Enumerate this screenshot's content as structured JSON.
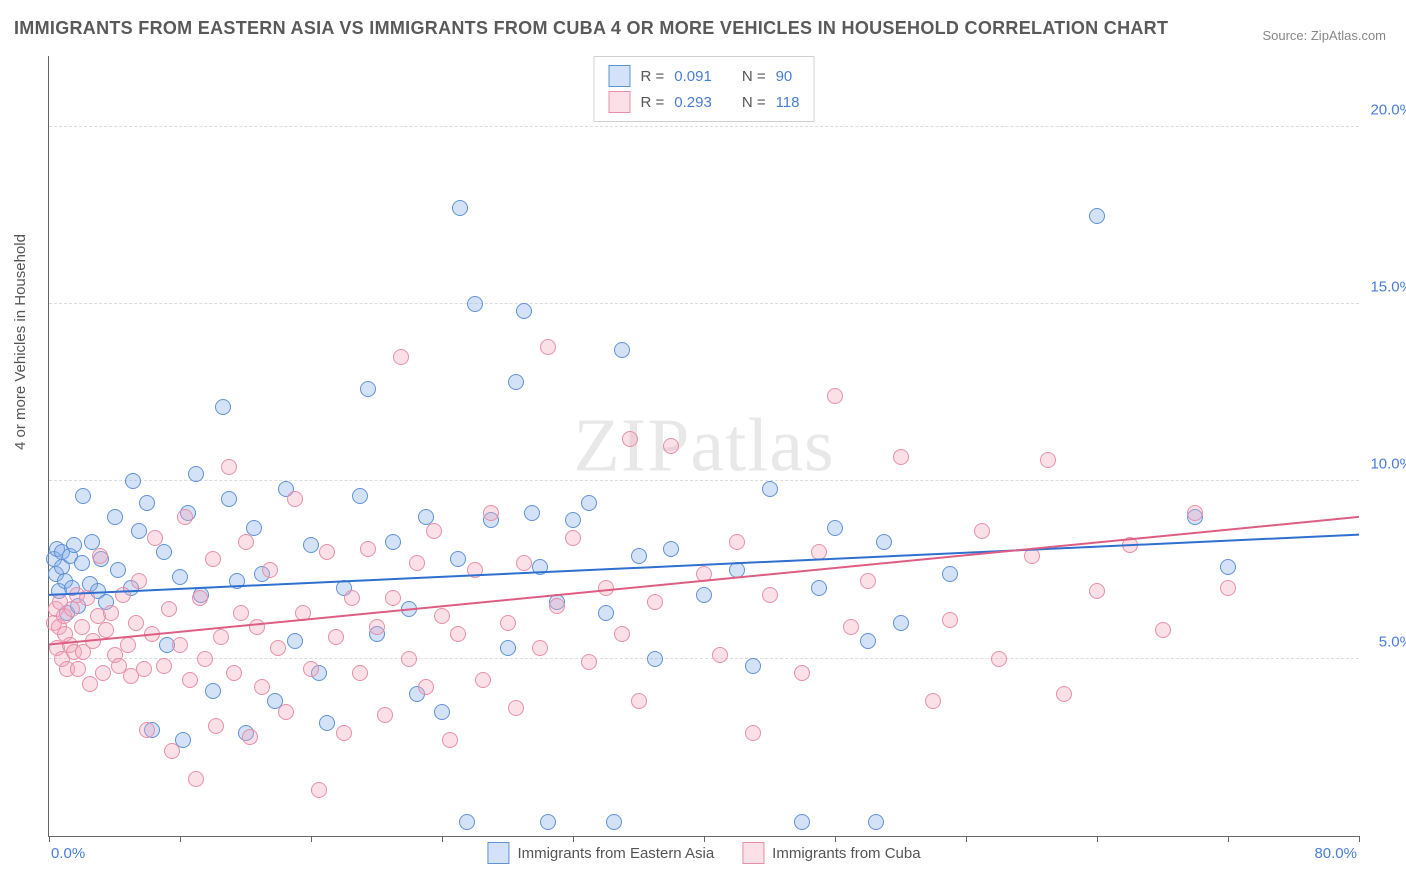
{
  "title": "IMMIGRANTS FROM EASTERN ASIA VS IMMIGRANTS FROM CUBA 4 OR MORE VEHICLES IN HOUSEHOLD CORRELATION CHART",
  "source": "Source: ZipAtlas.com",
  "ylabel": "4 or more Vehicles in Household",
  "watermark": "ZIPatlas",
  "chart": {
    "type": "scatter",
    "xlim": [
      0,
      80
    ],
    "ylim": [
      0,
      22
    ],
    "xtick_min_label": "0.0%",
    "xtick_max_label": "80.0%",
    "xtick_positions": [
      0,
      8,
      16,
      24,
      32,
      40,
      48,
      56,
      64,
      72,
      80
    ],
    "yticks": [
      {
        "v": 5,
        "label": "5.0%"
      },
      {
        "v": 10,
        "label": "10.0%"
      },
      {
        "v": 15,
        "label": "15.0%"
      },
      {
        "v": 20,
        "label": "20.0%"
      }
    ],
    "background_color": "#ffffff",
    "grid_color": "#dcdcdc",
    "axis_color": "#666666",
    "tick_label_color": "#4a7dd8",
    "marker_radius": 7,
    "marker_border_width": 1.5,
    "trend_line_width": 2
  },
  "series": [
    {
      "name": "Immigrants from Eastern Asia",
      "fill": "rgba(133,173,233,0.35)",
      "stroke": "#5f93d6",
      "line_color": "#2e6fcf",
      "R": "0.091",
      "N": "90",
      "trend": {
        "y_at_xmin": 6.8,
        "y_at_xmax": 8.5
      },
      "points": [
        [
          0.3,
          7.8
        ],
        [
          0.4,
          7.4
        ],
        [
          0.5,
          8.1
        ],
        [
          0.6,
          6.9
        ],
        [
          0.8,
          7.6
        ],
        [
          0.8,
          8.0
        ],
        [
          1.0,
          7.2
        ],
        [
          1.1,
          6.3
        ],
        [
          1.3,
          7.9
        ],
        [
          1.4,
          7.0
        ],
        [
          1.5,
          8.2
        ],
        [
          1.8,
          6.5
        ],
        [
          2.0,
          7.7
        ],
        [
          2.1,
          9.6
        ],
        [
          2.5,
          7.1
        ],
        [
          2.6,
          8.3
        ],
        [
          3.0,
          6.9
        ],
        [
          3.2,
          7.8
        ],
        [
          3.5,
          6.6
        ],
        [
          4.0,
          9.0
        ],
        [
          4.2,
          7.5
        ],
        [
          5.0,
          7.0
        ],
        [
          5.1,
          10.0
        ],
        [
          5.5,
          8.6
        ],
        [
          6.0,
          9.4
        ],
        [
          6.3,
          3.0
        ],
        [
          7.0,
          8.0
        ],
        [
          7.2,
          5.4
        ],
        [
          8.0,
          7.3
        ],
        [
          8.2,
          2.7
        ],
        [
          8.5,
          9.1
        ],
        [
          9.0,
          10.2
        ],
        [
          9.3,
          6.8
        ],
        [
          10.0,
          4.1
        ],
        [
          10.6,
          12.1
        ],
        [
          11.0,
          9.5
        ],
        [
          11.5,
          7.2
        ],
        [
          12.0,
          2.9
        ],
        [
          12.5,
          8.7
        ],
        [
          13.0,
          7.4
        ],
        [
          13.8,
          3.8
        ],
        [
          14.5,
          9.8
        ],
        [
          15.0,
          5.5
        ],
        [
          16.0,
          8.2
        ],
        [
          16.5,
          4.6
        ],
        [
          17.0,
          3.2
        ],
        [
          18.0,
          7.0
        ],
        [
          19.0,
          9.6
        ],
        [
          19.5,
          12.6
        ],
        [
          20.0,
          5.7
        ],
        [
          21.0,
          8.3
        ],
        [
          22.0,
          6.4
        ],
        [
          22.5,
          4.0
        ],
        [
          23.0,
          9.0
        ],
        [
          24.0,
          3.5
        ],
        [
          25.0,
          7.8
        ],
        [
          25.1,
          17.7
        ],
        [
          25.5,
          0.4
        ],
        [
          26.0,
          15.0
        ],
        [
          27.0,
          8.9
        ],
        [
          28.0,
          5.3
        ],
        [
          28.5,
          12.8
        ],
        [
          29.0,
          14.8
        ],
        [
          29.5,
          9.1
        ],
        [
          30.0,
          7.6
        ],
        [
          30.5,
          0.4
        ],
        [
          31.0,
          6.6
        ],
        [
          32.0,
          8.9
        ],
        [
          33.0,
          9.4
        ],
        [
          34.0,
          6.3
        ],
        [
          34.5,
          0.4
        ],
        [
          35.0,
          13.7
        ],
        [
          36.0,
          7.9
        ],
        [
          37.0,
          5.0
        ],
        [
          38.0,
          8.1
        ],
        [
          40.0,
          6.8
        ],
        [
          42.0,
          7.5
        ],
        [
          43.0,
          4.8
        ],
        [
          44.0,
          9.8
        ],
        [
          46.0,
          0.4
        ],
        [
          47.0,
          7.0
        ],
        [
          48.0,
          8.7
        ],
        [
          50.0,
          5.5
        ],
        [
          50.5,
          0.4
        ],
        [
          51.0,
          8.3
        ],
        [
          52.0,
          6.0
        ],
        [
          55.0,
          7.4
        ],
        [
          64.0,
          17.5
        ],
        [
          70.0,
          9.0
        ],
        [
          72.0,
          7.6
        ]
      ]
    },
    {
      "name": "Immigrants from Cuba",
      "fill": "rgba(244,166,188,0.35)",
      "stroke": "#e78fa8",
      "line_color": "#de5d83",
      "R": "0.293",
      "N": "118",
      "trend": {
        "y_at_xmin": 5.4,
        "y_at_xmax": 9.0
      },
      "points": [
        [
          0.3,
          6.0
        ],
        [
          0.4,
          6.4
        ],
        [
          0.5,
          5.3
        ],
        [
          0.6,
          5.9
        ],
        [
          0.7,
          6.6
        ],
        [
          0.8,
          5.0
        ],
        [
          0.9,
          6.2
        ],
        [
          1.0,
          5.7
        ],
        [
          1.1,
          4.7
        ],
        [
          1.3,
          5.4
        ],
        [
          1.4,
          6.4
        ],
        [
          1.5,
          5.2
        ],
        [
          1.7,
          6.8
        ],
        [
          1.8,
          4.7
        ],
        [
          2.0,
          5.9
        ],
        [
          2.1,
          5.2
        ],
        [
          2.3,
          6.7
        ],
        [
          2.5,
          4.3
        ],
        [
          2.7,
          5.5
        ],
        [
          3.0,
          6.2
        ],
        [
          3.1,
          7.9
        ],
        [
          3.3,
          4.6
        ],
        [
          3.5,
          5.8
        ],
        [
          3.8,
          6.3
        ],
        [
          4.0,
          5.1
        ],
        [
          4.3,
          4.8
        ],
        [
          4.5,
          6.8
        ],
        [
          4.8,
          5.4
        ],
        [
          5.0,
          4.5
        ],
        [
          5.3,
          6.0
        ],
        [
          5.5,
          7.2
        ],
        [
          5.8,
          4.7
        ],
        [
          6.0,
          3.0
        ],
        [
          6.3,
          5.7
        ],
        [
          6.5,
          8.4
        ],
        [
          7.0,
          4.8
        ],
        [
          7.3,
          6.4
        ],
        [
          7.5,
          2.4
        ],
        [
          8.0,
          5.4
        ],
        [
          8.3,
          9.0
        ],
        [
          8.6,
          4.4
        ],
        [
          9.0,
          1.6
        ],
        [
          9.2,
          6.7
        ],
        [
          9.5,
          5.0
        ],
        [
          10.0,
          7.8
        ],
        [
          10.2,
          3.1
        ],
        [
          10.5,
          5.6
        ],
        [
          11.0,
          10.4
        ],
        [
          11.3,
          4.6
        ],
        [
          11.7,
          6.3
        ],
        [
          12.0,
          8.3
        ],
        [
          12.3,
          2.8
        ],
        [
          12.7,
          5.9
        ],
        [
          13.0,
          4.2
        ],
        [
          13.5,
          7.5
        ],
        [
          14.0,
          5.3
        ],
        [
          14.5,
          3.5
        ],
        [
          15.0,
          9.5
        ],
        [
          15.5,
          6.3
        ],
        [
          16.0,
          4.7
        ],
        [
          16.5,
          1.3
        ],
        [
          17.0,
          8.0
        ],
        [
          17.5,
          5.6
        ],
        [
          18.0,
          2.9
        ],
        [
          18.5,
          6.7
        ],
        [
          19.0,
          4.6
        ],
        [
          19.5,
          8.1
        ],
        [
          20.0,
          5.9
        ],
        [
          20.5,
          3.4
        ],
        [
          21.0,
          6.7
        ],
        [
          21.5,
          13.5
        ],
        [
          22.0,
          5.0
        ],
        [
          22.5,
          7.7
        ],
        [
          23.0,
          4.2
        ],
        [
          23.5,
          8.6
        ],
        [
          24.0,
          6.2
        ],
        [
          24.5,
          2.7
        ],
        [
          25.0,
          5.7
        ],
        [
          26.0,
          7.5
        ],
        [
          26.5,
          4.4
        ],
        [
          27.0,
          9.1
        ],
        [
          28.0,
          6.0
        ],
        [
          28.5,
          3.6
        ],
        [
          29.0,
          7.7
        ],
        [
          30.0,
          5.3
        ],
        [
          30.5,
          13.8
        ],
        [
          31.0,
          6.5
        ],
        [
          32.0,
          8.4
        ],
        [
          33.0,
          4.9
        ],
        [
          34.0,
          7.0
        ],
        [
          35.0,
          5.7
        ],
        [
          35.5,
          11.2
        ],
        [
          36.0,
          3.8
        ],
        [
          37.0,
          6.6
        ],
        [
          38.0,
          11.0
        ],
        [
          40.0,
          7.4
        ],
        [
          41.0,
          5.1
        ],
        [
          42.0,
          8.3
        ],
        [
          43.0,
          2.9
        ],
        [
          44.0,
          6.8
        ],
        [
          46.0,
          4.6
        ],
        [
          47.0,
          8.0
        ],
        [
          48.0,
          12.4
        ],
        [
          49.0,
          5.9
        ],
        [
          50.0,
          7.2
        ],
        [
          52.0,
          10.7
        ],
        [
          54.0,
          3.8
        ],
        [
          55.0,
          6.1
        ],
        [
          57.0,
          8.6
        ],
        [
          58.0,
          5.0
        ],
        [
          60.0,
          7.9
        ],
        [
          61.0,
          10.6
        ],
        [
          62.0,
          4.0
        ],
        [
          64.0,
          6.9
        ],
        [
          66.0,
          8.2
        ],
        [
          68.0,
          5.8
        ],
        [
          70.0,
          9.1
        ],
        [
          72.0,
          7.0
        ]
      ]
    }
  ],
  "legend_top": {
    "R_label": "R =",
    "N_label": "N ="
  },
  "legend_bottom_labels": [
    "Immigrants from Eastern Asia",
    "Immigrants from Cuba"
  ]
}
